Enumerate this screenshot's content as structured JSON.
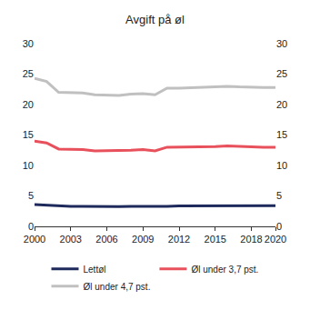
{
  "chart_data": {
    "type": "line",
    "title": "Avgift på øl",
    "x": [
      2000,
      2001,
      2002,
      2003,
      2004,
      2005,
      2006,
      2007,
      2008,
      2009,
      2010,
      2011,
      2012,
      2013,
      2014,
      2015,
      2016,
      2017,
      2018,
      2019,
      2020
    ],
    "series": [
      {
        "name": "Lettøl",
        "color": "#1f2a5c",
        "values": [
          3.6,
          3.5,
          3.3,
          3.3,
          3.3,
          3.25,
          3.2,
          3.25,
          3.3,
          3.3,
          3.2,
          3.3,
          3.35,
          3.35,
          3.4,
          3.4,
          3.4,
          3.4,
          3.4,
          3.4,
          3.4
        ]
      },
      {
        "name": "Øl under 3,7 pst.",
        "color": "#e8505b",
        "values": [
          14.0,
          13.7,
          12.7,
          12.7,
          12.6,
          12.4,
          12.4,
          12.4,
          12.5,
          12.6,
          12.4,
          13.0,
          13.0,
          13.0,
          13.1,
          13.1,
          13.2,
          13.1,
          13.0,
          13.0,
          13.0
        ]
      },
      {
        "name": "Øl under 4,7 pst.",
        "color": "#c0c0c0",
        "values": [
          24.3,
          23.8,
          22.0,
          22.0,
          21.9,
          21.6,
          21.5,
          21.5,
          21.7,
          21.8,
          21.6,
          22.7,
          22.7,
          22.8,
          22.8,
          22.9,
          23.0,
          22.9,
          22.8,
          22.8,
          22.8
        ]
      }
    ],
    "xlim": [
      2000,
      2020
    ],
    "xticks": [
      2000,
      2003,
      2006,
      2009,
      2012,
      2015,
      2018,
      2020
    ],
    "ylim": [
      0,
      30
    ],
    "yticks": [
      0,
      5,
      10,
      15,
      20,
      25,
      30
    ],
    "y2lim": [
      0,
      30
    ],
    "y2ticks": [
      0,
      5,
      10,
      15,
      20,
      25,
      30
    ],
    "grid": false,
    "legend": "bottom"
  }
}
